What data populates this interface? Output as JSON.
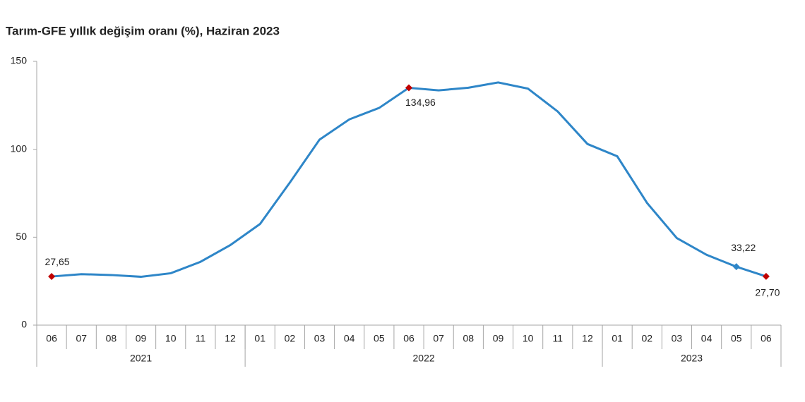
{
  "chart_data": {
    "type": "line",
    "title": "Tarım-GFE yıllık değişim oranı (%), Haziran 2023",
    "categories": [
      "06",
      "07",
      "08",
      "09",
      "10",
      "11",
      "12",
      "01",
      "02",
      "03",
      "04",
      "05",
      "06",
      "07",
      "08",
      "09",
      "10",
      "11",
      "12",
      "01",
      "02",
      "03",
      "04",
      "05",
      "06"
    ],
    "groups": [
      {
        "label": "2021",
        "count": 7
      },
      {
        "label": "2022",
        "count": 12
      },
      {
        "label": "2023",
        "count": 6
      }
    ],
    "series": [
      {
        "color": "#2e86c8",
        "values": [
          27.65,
          29.0,
          28.5,
          27.5,
          29.5,
          36,
          45.5,
          57.5,
          81,
          105.5,
          117,
          123.5,
          134.96,
          133.5,
          135,
          138,
          134.5,
          121.5,
          103,
          96,
          69.5,
          49.5,
          40,
          33.22,
          27.7
        ],
        "value_labels": [
          "27,65",
          null,
          null,
          null,
          null,
          null,
          null,
          null,
          null,
          null,
          null,
          null,
          "134,96",
          null,
          null,
          null,
          null,
          null,
          null,
          null,
          null,
          null,
          null,
          "33,22",
          "27,70"
        ],
        "marker_colors": [
          "#c00000",
          null,
          null,
          null,
          null,
          null,
          null,
          null,
          null,
          null,
          null,
          null,
          "#c00000",
          null,
          null,
          null,
          null,
          null,
          null,
          null,
          null,
          null,
          null,
          "#2e86c8",
          "#c00000"
        ]
      }
    ],
    "ylim": [
      0,
      150
    ],
    "yticks": [
      0,
      50,
      100,
      150
    ],
    "grid": false
  }
}
